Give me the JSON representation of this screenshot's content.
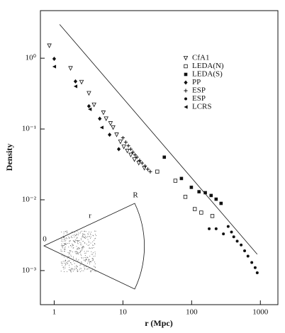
{
  "chart_data": {
    "type": "scatter",
    "log_x": true,
    "log_y": true,
    "x_label": "r (Mpc)",
    "y_label": "Density",
    "xlim": [
      0.63,
      1800
    ],
    "ylim": [
      0.00033,
      4.7
    ],
    "xticks": [
      1,
      10,
      100,
      1000
    ],
    "yticks": [
      {
        "value": 1,
        "label": "10⁰"
      },
      {
        "value": 0.1,
        "label": "10⁻¹"
      },
      {
        "value": 0.01,
        "label": "10⁻²"
      },
      {
        "value": 0.001,
        "label": "10⁻³"
      }
    ],
    "legend": "upper right",
    "series": [
      {
        "name": "CfA1",
        "marker": "triangle-down-open",
        "color": "#111",
        "x": [
          0.85,
          1.73,
          2.5,
          3.2,
          3.8,
          5.2,
          5.7,
          6.6,
          7.2,
          8.1,
          9.2,
          10.3,
          11.6,
          13,
          14.7,
          17,
          20.5
        ],
        "values": [
          1.5,
          0.72,
          0.46,
          0.32,
          0.22,
          0.17,
          0.14,
          0.12,
          0.105,
          0.083,
          0.066,
          0.056,
          0.049,
          0.043,
          0.037,
          0.033,
          0.028
        ]
      },
      {
        "name": "LEDA(N)",
        "marker": "square-open",
        "color": "#111",
        "x": [
          31.6,
          58,
          81,
          111,
          138,
          200
        ],
        "values": [
          0.025,
          0.0186,
          0.011,
          0.0074,
          0.0066,
          0.0059
        ]
      },
      {
        "name": "LEDA(S)",
        "marker": "square",
        "color": "#111",
        "x": [
          40,
          71,
          99,
          128,
          158,
          192,
          227,
          268
        ],
        "values": [
          0.04,
          0.02,
          0.015,
          0.013,
          0.0126,
          0.0115,
          0.0102,
          0.0089
        ]
      },
      {
        "name": "PP",
        "marker": "diamond",
        "color": "#111",
        "x": [
          1,
          2.04,
          3.2,
          4.6,
          6.4,
          8.7
        ],
        "values": [
          0.98,
          0.47,
          0.21,
          0.14,
          0.083,
          0.052
        ]
      },
      {
        "name": "ESP",
        "marker": "plus",
        "color": "#111",
        "x": [
          10,
          11,
          12,
          13,
          14,
          15,
          16,
          17.5,
          19,
          21,
          23,
          25
        ],
        "values": [
          0.075,
          0.065,
          0.058,
          0.052,
          0.047,
          0.043,
          0.04,
          0.036,
          0.033,
          0.03,
          0.027,
          0.025
        ]
      },
      {
        "name": "ESP",
        "marker": "circle",
        "color": "#111",
        "x": [
          180,
          227,
          290,
          340,
          380,
          410,
          460,
          525,
          590,
          660,
          750,
          840,
          900
        ],
        "values": [
          0.0039,
          0.0039,
          0.0033,
          0.0042,
          0.0035,
          0.003,
          0.0026,
          0.0023,
          0.0019,
          0.0016,
          0.0013,
          0.0011,
          0.00093
        ]
      },
      {
        "name": "LCRS",
        "marker": "triangle-left",
        "color": "#111",
        "x": [
          1,
          2.04,
          3.3,
          4.9
        ],
        "values": [
          0.76,
          0.4,
          0.19,
          0.105
        ]
      }
    ],
    "reference_line": {
      "x": [
        1.2,
        900
      ],
      "values": [
        3,
        0.0017
      ]
    },
    "inset_labels": {
      "origin": "0",
      "r": "r",
      "R": "R"
    }
  }
}
